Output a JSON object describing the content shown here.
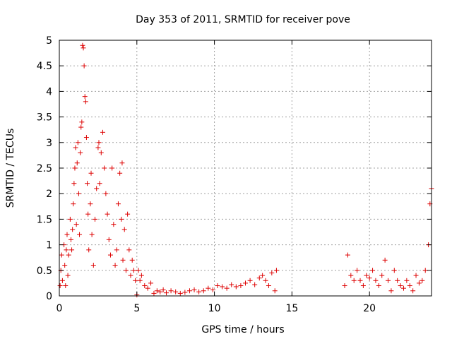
{
  "chart_data": {
    "type": "scatter",
    "title": "Day 353 of 2011, SRMTID for receiver pove",
    "xlabel": "GPS time / hours",
    "ylabel": "SRMTID / TECUs",
    "xlim": [
      0,
      24
    ],
    "ylim": [
      0,
      5
    ],
    "xticks": [
      {
        "value": 0,
        "label": "0"
      },
      {
        "value": 5,
        "label": "5"
      },
      {
        "value": 10,
        "label": "10"
      },
      {
        "value": 15,
        "label": "15"
      },
      {
        "value": 20,
        "label": "20"
      }
    ],
    "yticks": [
      {
        "value": 0,
        "label": "0"
      },
      {
        "value": 0.5,
        "label": "0.5"
      },
      {
        "value": 1,
        "label": "1"
      },
      {
        "value": 1.5,
        "label": "1.5"
      },
      {
        "value": 2,
        "label": "2"
      },
      {
        "value": 2.5,
        "label": "2.5"
      },
      {
        "value": 3,
        "label": "3"
      },
      {
        "value": 3.5,
        "label": "3.5"
      },
      {
        "value": 4,
        "label": "4"
      },
      {
        "value": 4.5,
        "label": "4.5"
      },
      {
        "value": 5,
        "label": "5"
      }
    ],
    "grid": true,
    "marker": "+",
    "color": "#dd0000",
    "series": [
      {
        "name": "SRMTID",
        "x": [
          0.05,
          0.1,
          0.15,
          0.2,
          0.3,
          0.35,
          0.4,
          0.45,
          0.5,
          0.55,
          0.6,
          0.7,
          0.75,
          0.8,
          0.85,
          0.9,
          0.95,
          1.0,
          1.05,
          1.1,
          1.15,
          1.2,
          1.25,
          1.3,
          1.35,
          1.4,
          1.45,
          1.5,
          1.55,
          1.6,
          1.65,
          1.7,
          1.75,
          1.8,
          1.85,
          1.9,
          2.0,
          2.05,
          2.1,
          2.2,
          2.3,
          2.4,
          2.5,
          2.55,
          2.6,
          2.7,
          2.8,
          2.9,
          3.0,
          3.1,
          3.2,
          3.3,
          3.4,
          3.5,
          3.6,
          3.7,
          3.8,
          3.9,
          4.0,
          4.05,
          4.1,
          4.2,
          4.3,
          4.4,
          4.5,
          4.6,
          4.7,
          4.8,
          4.9,
          5.0,
          5.1,
          5.2,
          5.3,
          5.5,
          5.7,
          5.9,
          6.1,
          6.3,
          6.5,
          6.7,
          6.9,
          7.2,
          7.5,
          7.8,
          8.1,
          8.4,
          8.7,
          9.0,
          9.3,
          9.6,
          9.9,
          10.2,
          10.5,
          10.8,
          11.1,
          11.4,
          11.7,
          12.0,
          12.3,
          12.6,
          12.9,
          13.1,
          13.3,
          13.5,
          13.7,
          13.9,
          14.0,
          18.4,
          18.6,
          18.8,
          19.0,
          19.2,
          19.4,
          19.6,
          19.8,
          20.0,
          20.2,
          20.4,
          20.6,
          20.8,
          21.0,
          21.2,
          21.4,
          21.6,
          21.8,
          22.0,
          22.2,
          22.4,
          22.6,
          22.8,
          23.0,
          23.2,
          23.4,
          23.6,
          23.8,
          23.9,
          24.0
        ],
        "y": [
          0.2,
          0.5,
          0.8,
          0.3,
          1.0,
          0.6,
          0.2,
          0.9,
          1.2,
          0.4,
          0.8,
          1.5,
          1.1,
          0.9,
          1.3,
          1.8,
          2.2,
          2.5,
          2.9,
          1.4,
          2.6,
          3.0,
          2.0,
          1.2,
          2.8,
          3.3,
          3.4,
          4.9,
          4.85,
          4.5,
          3.9,
          3.8,
          3.1,
          2.2,
          1.6,
          0.9,
          1.8,
          2.4,
          1.2,
          0.6,
          1.5,
          2.1,
          2.9,
          3.0,
          2.2,
          2.8,
          3.2,
          2.5,
          2.0,
          1.6,
          1.1,
          0.8,
          2.5,
          1.4,
          0.6,
          0.9,
          1.8,
          2.4,
          1.5,
          2.6,
          0.7,
          1.3,
          0.5,
          1.6,
          0.9,
          0.4,
          0.7,
          0.5,
          0.3,
          0.02,
          0.5,
          0.3,
          0.4,
          0.2,
          0.15,
          0.25,
          0.05,
          0.1,
          0.08,
          0.12,
          0.06,
          0.1,
          0.08,
          0.05,
          0.07,
          0.1,
          0.12,
          0.08,
          0.1,
          0.15,
          0.12,
          0.2,
          0.18,
          0.15,
          0.22,
          0.18,
          0.2,
          0.25,
          0.3,
          0.22,
          0.35,
          0.4,
          0.3,
          0.2,
          0.45,
          0.1,
          0.5,
          0.2,
          0.8,
          0.4,
          0.3,
          0.5,
          0.3,
          0.2,
          0.4,
          0.35,
          0.5,
          0.3,
          0.2,
          0.4,
          0.7,
          0.3,
          0.1,
          0.5,
          0.3,
          0.2,
          0.15,
          0.3,
          0.2,
          0.1,
          0.4,
          0.25,
          0.3,
          0.5,
          1.0,
          1.8,
          2.1
        ]
      }
    ]
  }
}
